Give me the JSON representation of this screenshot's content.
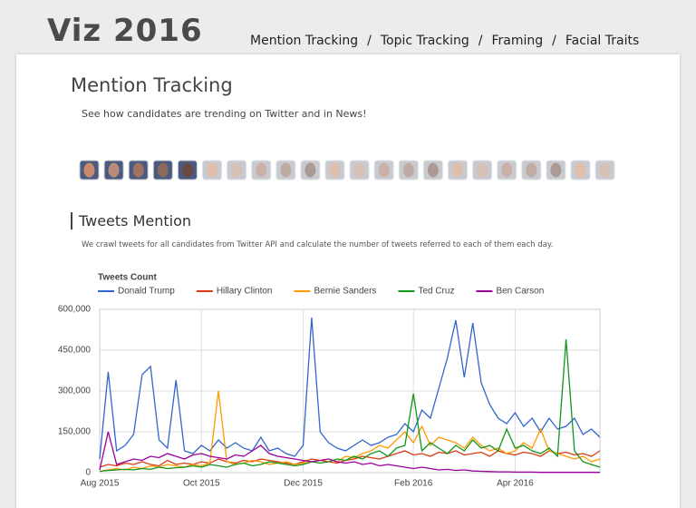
{
  "header": {
    "logo": "Viz 2016",
    "nav": [
      "Mention Tracking",
      "Topic Tracking",
      "Framing",
      "Facial Traits"
    ],
    "nav_separator": "/"
  },
  "page": {
    "title": "Mention Tracking",
    "subtitle": "See how candidates are trending on Twitter and in News!",
    "section_title": "Tweets Mention",
    "section_description": "We crawl tweets for all candidates from Twitter API and calculate the number of tweets referred to each of them each day."
  },
  "chart_data": {
    "type": "line",
    "title": "Tweets Count",
    "categories": [
      "Aug 2015",
      null,
      null,
      null,
      null,
      null,
      null,
      null,
      null,
      null,
      null,
      null,
      "Oct 2015",
      null,
      null,
      null,
      null,
      null,
      null,
      null,
      null,
      null,
      null,
      null,
      "Dec 2015",
      null,
      null,
      null,
      null,
      null,
      null,
      null,
      null,
      null,
      null,
      null,
      null,
      "Feb 2016",
      null,
      null,
      null,
      null,
      null,
      null,
      null,
      null,
      null,
      null,
      null,
      "Apr 2016",
      null,
      null,
      null,
      null,
      null,
      null,
      null,
      null,
      null,
      null
    ],
    "series": [
      {
        "name": "Donald Trump",
        "color": "#3366cc",
        "values": [
          50000,
          370000,
          80000,
          100000,
          140000,
          360000,
          390000,
          120000,
          90000,
          340000,
          80000,
          70000,
          100000,
          80000,
          120000,
          90000,
          110000,
          90000,
          80000,
          130000,
          80000,
          90000,
          70000,
          60000,
          100000,
          570000,
          150000,
          110000,
          90000,
          80000,
          100000,
          120000,
          100000,
          110000,
          130000,
          140000,
          180000,
          150000,
          230000,
          200000,
          310000,
          420000,
          560000,
          350000,
          550000,
          330000,
          250000,
          200000,
          180000,
          220000,
          170000,
          200000,
          150000,
          200000,
          160000,
          170000,
          200000,
          140000,
          160000,
          130000
        ]
      },
      {
        "name": "Hillary Clinton",
        "color": "#dc3912",
        "values": [
          20000,
          30000,
          25000,
          35000,
          30000,
          40000,
          30000,
          25000,
          45000,
          30000,
          35000,
          30000,
          40000,
          35000,
          50000,
          40000,
          35000,
          45000,
          40000,
          50000,
          45000,
          40000,
          35000,
          30000,
          40000,
          50000,
          45000,
          40000,
          35000,
          45000,
          50000,
          60000,
          55000,
          50000,
          60000,
          70000,
          80000,
          65000,
          70000,
          60000,
          75000,
          70000,
          80000,
          65000,
          70000,
          75000,
          60000,
          80000,
          70000,
          65000,
          75000,
          70000,
          60000,
          80000,
          70000,
          75000,
          65000,
          70000,
          60000,
          80000
        ]
      },
      {
        "name": "Bernie Sanders",
        "color": "#ff9900",
        "values": [
          5000,
          10000,
          15000,
          10000,
          20000,
          15000,
          25000,
          20000,
          30000,
          25000,
          20000,
          30000,
          25000,
          35000,
          300000,
          40000,
          30000,
          35000,
          45000,
          40000,
          30000,
          35000,
          40000,
          30000,
          35000,
          40000,
          45000,
          50000,
          40000,
          60000,
          55000,
          70000,
          80000,
          100000,
          90000,
          120000,
          150000,
          110000,
          170000,
          100000,
          130000,
          120000,
          110000,
          90000,
          130000,
          100000,
          80000,
          90000,
          70000,
          80000,
          110000,
          90000,
          160000,
          80000,
          70000,
          60000,
          50000,
          60000,
          40000,
          50000
        ]
      },
      {
        "name": "Ted Cruz",
        "color": "#109618",
        "values": [
          5000,
          8000,
          10000,
          12000,
          10000,
          15000,
          12000,
          20000,
          15000,
          18000,
          20000,
          25000,
          20000,
          30000,
          25000,
          20000,
          30000,
          35000,
          25000,
          30000,
          40000,
          35000,
          30000,
          25000,
          30000,
          40000,
          35000,
          40000,
          50000,
          45000,
          60000,
          50000,
          70000,
          80000,
          60000,
          90000,
          100000,
          290000,
          80000,
          110000,
          90000,
          70000,
          100000,
          80000,
          120000,
          90000,
          100000,
          80000,
          160000,
          90000,
          100000,
          80000,
          70000,
          90000,
          60000,
          490000,
          80000,
          40000,
          30000,
          20000
        ]
      },
      {
        "name": "Ben Carson",
        "color": "#990099",
        "values": [
          10000,
          150000,
          30000,
          40000,
          50000,
          45000,
          60000,
          55000,
          70000,
          60000,
          50000,
          65000,
          70000,
          60000,
          55000,
          50000,
          65000,
          60000,
          80000,
          100000,
          70000,
          60000,
          55000,
          50000,
          45000,
          40000,
          45000,
          50000,
          40000,
          35000,
          40000,
          30000,
          35000,
          25000,
          30000,
          25000,
          20000,
          15000,
          20000,
          15000,
          10000,
          12000,
          8000,
          10000,
          6000,
          5000,
          4000,
          3000,
          3000,
          2000,
          2000,
          2000,
          1000,
          1000,
          1000,
          1000,
          1000,
          1000,
          1000,
          1000
        ]
      }
    ],
    "ylim": [
      0,
      600000
    ],
    "yticks": [
      0,
      {
        "value": 150000,
        "label": "150,000"
      },
      {
        "value": 300000,
        "label": "300,000"
      },
      {
        "value": 450000,
        "label": "450,000"
      },
      {
        "value": 600000,
        "label": "600,000"
      }
    ],
    "grid": true,
    "legend": "top"
  }
}
